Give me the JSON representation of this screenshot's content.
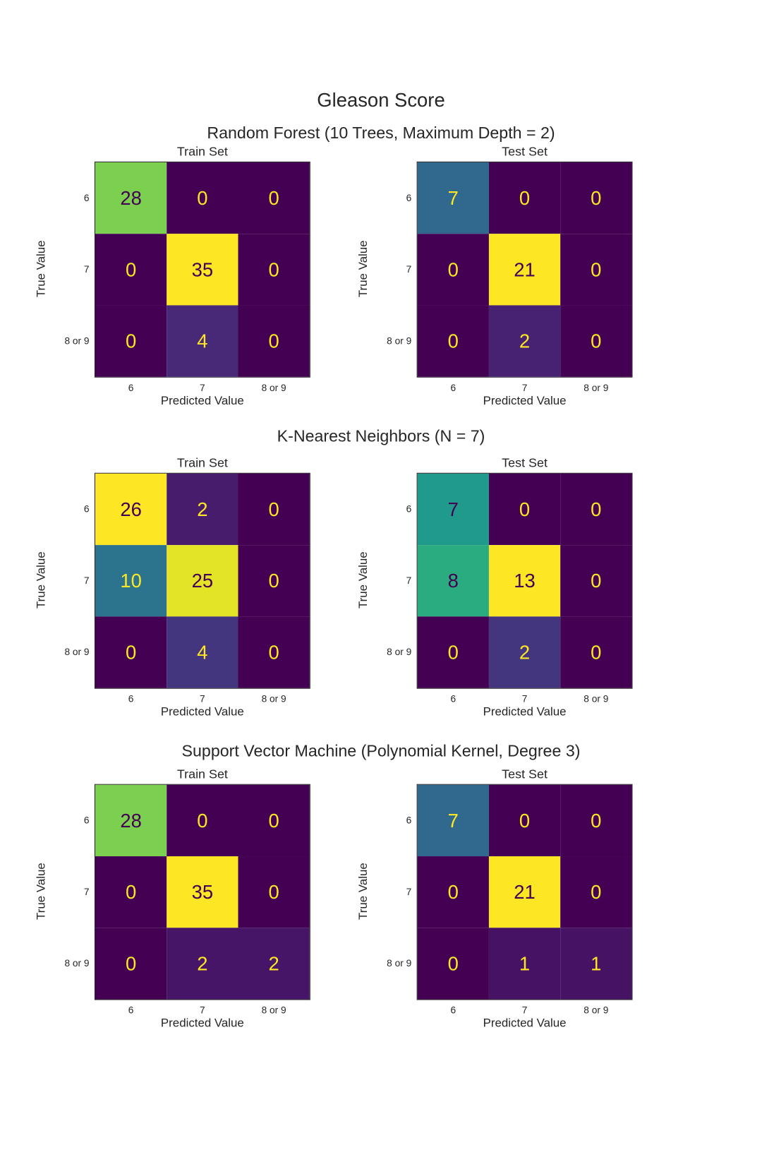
{
  "chart_data": {
    "type": "heatmap",
    "title": "Gleason Score",
    "colormap": "viridis",
    "class_labels": [
      "6",
      "7",
      "8 or 9"
    ],
    "xlabel": "Predicted Value",
    "ylabel": "True Value",
    "models": [
      {
        "title": "Random Forest (10 Trees, Maximum Depth = 2)",
        "panels": [
          {
            "title": "Train Set",
            "matrix": [
              [
                28,
                0,
                0
              ],
              [
                0,
                35,
                0
              ],
              [
                0,
                4,
                0
              ]
            ]
          },
          {
            "title": "Test Set",
            "matrix": [
              [
                7,
                0,
                0
              ],
              [
                0,
                21,
                0
              ],
              [
                0,
                2,
                0
              ]
            ]
          }
        ]
      },
      {
        "title": "K-Nearest Neighbors (N = 7)",
        "panels": [
          {
            "title": "Train Set",
            "matrix": [
              [
                26,
                2,
                0
              ],
              [
                10,
                25,
                0
              ],
              [
                0,
                4,
                0
              ]
            ]
          },
          {
            "title": "Test Set",
            "matrix": [
              [
                7,
                0,
                0
              ],
              [
                8,
                13,
                0
              ],
              [
                0,
                2,
                0
              ]
            ]
          }
        ]
      },
      {
        "title": "Support Vector Machine (Polynomial Kernel, Degree 3)",
        "panels": [
          {
            "title": "Train Set",
            "matrix": [
              [
                28,
                0,
                0
              ],
              [
                0,
                35,
                0
              ],
              [
                0,
                2,
                2
              ]
            ]
          },
          {
            "title": "Test Set",
            "matrix": [
              [
                7,
                0,
                0
              ],
              [
                0,
                21,
                0
              ],
              [
                0,
                1,
                1
              ]
            ]
          }
        ]
      }
    ]
  }
}
